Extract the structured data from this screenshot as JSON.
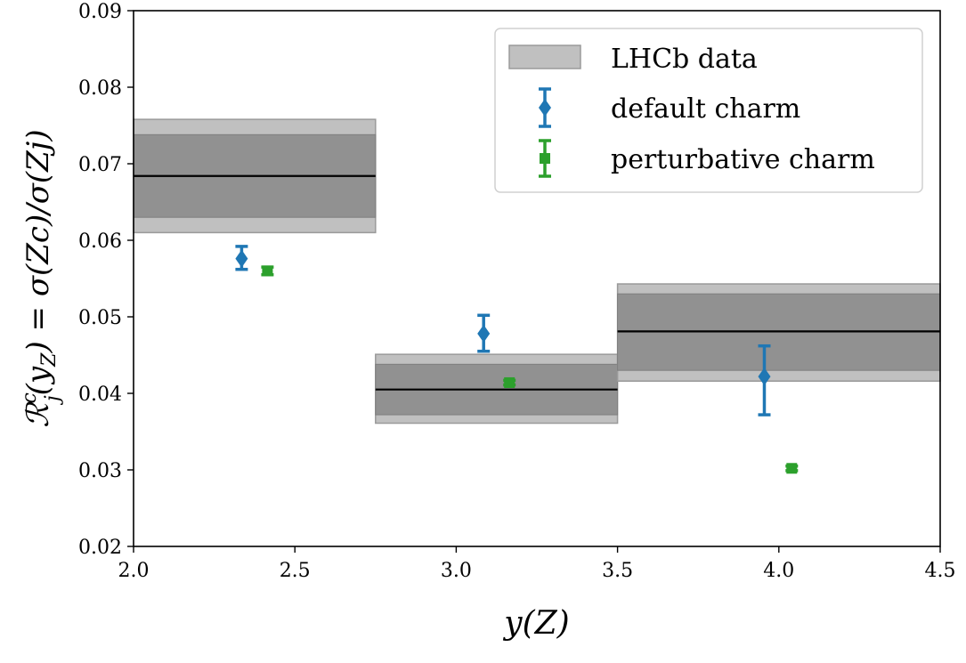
{
  "chart_data": {
    "type": "scatter",
    "xlabel": "y(Z)",
    "ylabel": "ℛ_j^c(y_Z) = σ(Zc)/σ(Zj)",
    "ylabel_parts": {
      "lhs_main": "ℛ",
      "lhs_sub": "j",
      "lhs_sup": "c",
      "lhs_arg_open": "(y",
      "lhs_arg_sub": "Z",
      "rhs": ") = σ(Zc)/σ(Zj)"
    },
    "xlim": [
      2.0,
      4.5
    ],
    "ylim": [
      0.02,
      0.09
    ],
    "xticks": [
      "2.0",
      "2.5",
      "3.0",
      "3.5",
      "4.0",
      "4.5"
    ],
    "yticks": [
      "0.02",
      "0.03",
      "0.04",
      "0.05",
      "0.06",
      "0.07",
      "0.08",
      "0.09"
    ],
    "grid": false,
    "legend_position": "top-right",
    "legend": [
      {
        "label": "LHCb data",
        "kind": "band"
      },
      {
        "label": "default charm",
        "kind": "diamond"
      },
      {
        "label": "perturbative charm",
        "kind": "square"
      }
    ],
    "lhcb_data": [
      {
        "x_lo": 2.0,
        "x_hi": 2.75,
        "central": 0.0684,
        "inner": [
          0.063,
          0.0738
        ],
        "outer": [
          0.061,
          0.0758
        ]
      },
      {
        "x_lo": 2.75,
        "x_hi": 3.5,
        "central": 0.0405,
        "inner": [
          0.0372,
          0.0438
        ],
        "outer": [
          0.0361,
          0.0451
        ]
      },
      {
        "x_lo": 3.5,
        "x_hi": 4.5,
        "central": 0.0481,
        "inner": [
          0.043,
          0.053
        ],
        "outer": [
          0.0416,
          0.0543
        ]
      }
    ],
    "series": [
      {
        "name": "default charm",
        "color": "#1f77b4",
        "marker": "diamond",
        "points": [
          {
            "x": 2.335,
            "y": 0.0576,
            "err_lo": 0.0562,
            "err_hi": 0.0592
          },
          {
            "x": 3.085,
            "y": 0.0478,
            "err_lo": 0.0455,
            "err_hi": 0.0502
          },
          {
            "x": 3.955,
            "y": 0.0422,
            "err_lo": 0.0372,
            "err_hi": 0.0462
          }
        ]
      },
      {
        "name": "perturbative charm",
        "color": "#2ca02c",
        "marker": "square",
        "points": [
          {
            "x": 2.415,
            "y": 0.056,
            "err_lo": 0.0555,
            "err_hi": 0.0565
          },
          {
            "x": 3.165,
            "y": 0.0414,
            "err_lo": 0.0411,
            "err_hi": 0.0417
          },
          {
            "x": 4.04,
            "y": 0.0302,
            "err_lo": 0.0299,
            "err_hi": 0.0305
          }
        ]
      }
    ],
    "colors": {
      "band_inner": "#919191",
      "band_outer": "#c0c0c0",
      "band_edge": "#9a9a9a",
      "central_line": "#000000"
    }
  }
}
